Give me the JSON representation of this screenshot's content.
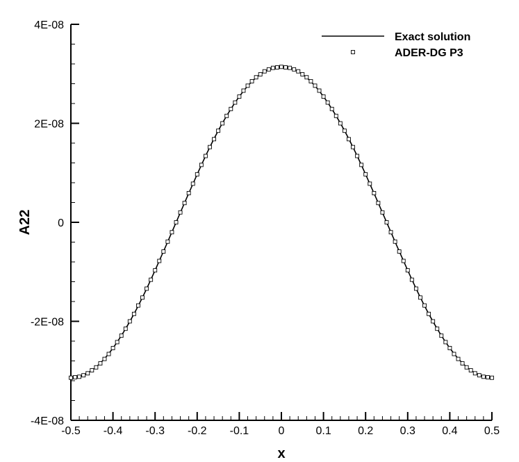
{
  "chart_data": {
    "type": "line",
    "title": "",
    "xlabel": "x",
    "ylabel": "A22",
    "xlim": [
      -0.5,
      0.5
    ],
    "ylim": [
      -4e-08,
      4e-08
    ],
    "xticks": [
      {
        "value": -0.5,
        "label": "-0.5"
      },
      {
        "value": -0.4,
        "label": "-0.4"
      },
      {
        "value": -0.3,
        "label": "-0.3"
      },
      {
        "value": -0.2,
        "label": "-0.2"
      },
      {
        "value": -0.1,
        "label": "-0.1"
      },
      {
        "value": 0,
        "label": "0"
      },
      {
        "value": 0.1,
        "label": "0.1"
      },
      {
        "value": 0.2,
        "label": "0.2"
      },
      {
        "value": 0.3,
        "label": "0.3"
      },
      {
        "value": 0.4,
        "label": "0.4"
      },
      {
        "value": 0.5,
        "label": "0.5"
      }
    ],
    "yticks": [
      {
        "value": -4e-08,
        "label": "-4E-08"
      },
      {
        "value": -2e-08,
        "label": "-2E-08"
      },
      {
        "value": 0,
        "label": "0"
      },
      {
        "value": 2e-08,
        "label": "2E-08"
      },
      {
        "value": 4e-08,
        "label": "4E-08"
      }
    ],
    "legend_position": "top-right",
    "grid": false,
    "series": [
      {
        "name": "Exact solution",
        "style": "line",
        "color": "#000000",
        "x": [
          -0.5,
          -0.475,
          -0.45,
          -0.425,
          -0.4,
          -0.375,
          -0.35,
          -0.325,
          -0.3,
          -0.275,
          -0.25,
          -0.225,
          -0.2,
          -0.175,
          -0.15,
          -0.125,
          -0.1,
          -0.075,
          -0.05,
          -0.025,
          0,
          0.025,
          0.05,
          0.075,
          0.1,
          0.125,
          0.15,
          0.175,
          0.2,
          0.225,
          0.25,
          0.275,
          0.3,
          0.325,
          0.35,
          0.375,
          0.4,
          0.425,
          0.45,
          0.475,
          0.5
        ],
        "y": [
          -3.14e-08,
          -3.1e-08,
          -2.99e-08,
          -2.8e-08,
          -2.54e-08,
          -2.22e-08,
          -1.85e-08,
          -1.43e-08,
          -9.7e-09,
          -4.9e-09,
          0,
          4.9e-09,
          9.7e-09,
          1.43e-08,
          1.85e-08,
          2.22e-08,
          2.54e-08,
          2.8e-08,
          2.99e-08,
          3.1e-08,
          3.14e-08,
          3.1e-08,
          2.99e-08,
          2.8e-08,
          2.54e-08,
          2.22e-08,
          1.85e-08,
          1.43e-08,
          9.7e-09,
          4.9e-09,
          0,
          -4.9e-09,
          -9.7e-09,
          -1.43e-08,
          -1.85e-08,
          -2.22e-08,
          -2.54e-08,
          -2.8e-08,
          -2.99e-08,
          -3.1e-08,
          -3.14e-08
        ]
      },
      {
        "name": "ADER-DG P3",
        "style": "marker-square-open",
        "color": "#000000",
        "x": [
          -0.5,
          -0.49,
          -0.48,
          -0.47,
          -0.46,
          -0.45,
          -0.44,
          -0.43,
          -0.42,
          -0.41,
          -0.4,
          -0.39,
          -0.38,
          -0.37,
          -0.36,
          -0.35,
          -0.34,
          -0.33,
          -0.32,
          -0.31,
          -0.3,
          -0.29,
          -0.28,
          -0.27,
          -0.26,
          -0.25,
          -0.24,
          -0.23,
          -0.22,
          -0.21,
          -0.2,
          -0.19,
          -0.18,
          -0.17,
          -0.16,
          -0.15,
          -0.14,
          -0.13,
          -0.12,
          -0.11,
          -0.1,
          -0.09,
          -0.08,
          -0.07,
          -0.06,
          -0.05,
          -0.04,
          -0.03,
          -0.02,
          -0.01,
          0,
          0.01,
          0.02,
          0.03,
          0.04,
          0.05,
          0.06,
          0.07,
          0.08,
          0.09,
          0.1,
          0.11,
          0.12,
          0.13,
          0.14,
          0.15,
          0.16,
          0.17,
          0.18,
          0.19,
          0.2,
          0.21,
          0.22,
          0.23,
          0.24,
          0.25,
          0.26,
          0.27,
          0.28,
          0.29,
          0.3,
          0.31,
          0.32,
          0.33,
          0.34,
          0.35,
          0.36,
          0.37,
          0.38,
          0.39,
          0.4,
          0.41,
          0.42,
          0.43,
          0.44,
          0.45,
          0.46,
          0.47,
          0.48,
          0.49,
          0.5
        ],
        "y": [
          -3.14e-08,
          -3.13e-08,
          -3.12e-08,
          -3.09e-08,
          -3.05e-08,
          -2.99e-08,
          -2.93e-08,
          -2.85e-08,
          -2.76e-08,
          -2.66e-08,
          -2.54e-08,
          -2.42e-08,
          -2.29e-08,
          -2.15e-08,
          -2e-08,
          -1.85e-08,
          -1.68e-08,
          -1.52e-08,
          -1.34e-08,
          -1.16e-08,
          -9.7e-09,
          -7.8e-09,
          -5.9e-09,
          -3.9e-09,
          -2e-09,
          0,
          2e-09,
          3.9e-09,
          5.9e-09,
          7.8e-09,
          9.7e-09,
          1.16e-08,
          1.34e-08,
          1.52e-08,
          1.68e-08,
          1.85e-08,
          2e-08,
          2.15e-08,
          2.29e-08,
          2.42e-08,
          2.54e-08,
          2.66e-08,
          2.76e-08,
          2.85e-08,
          2.93e-08,
          2.99e-08,
          3.05e-08,
          3.09e-08,
          3.12e-08,
          3.13e-08,
          3.14e-08,
          3.13e-08,
          3.12e-08,
          3.09e-08,
          3.05e-08,
          2.99e-08,
          2.93e-08,
          2.85e-08,
          2.76e-08,
          2.66e-08,
          2.54e-08,
          2.42e-08,
          2.29e-08,
          2.15e-08,
          2e-08,
          1.85e-08,
          1.68e-08,
          1.52e-08,
          1.34e-08,
          1.16e-08,
          9.7e-09,
          7.8e-09,
          5.9e-09,
          3.9e-09,
          2e-09,
          0,
          -2e-09,
          -3.9e-09,
          -5.9e-09,
          -7.8e-09,
          -9.7e-09,
          -1.16e-08,
          -1.34e-08,
          -1.52e-08,
          -1.68e-08,
          -1.85e-08,
          -2e-08,
          -2.15e-08,
          -2.29e-08,
          -2.42e-08,
          -2.54e-08,
          -2.66e-08,
          -2.76e-08,
          -2.85e-08,
          -2.93e-08,
          -2.99e-08,
          -3.05e-08,
          -3.09e-08,
          -3.12e-08,
          -3.13e-08,
          -3.14e-08
        ]
      }
    ]
  }
}
